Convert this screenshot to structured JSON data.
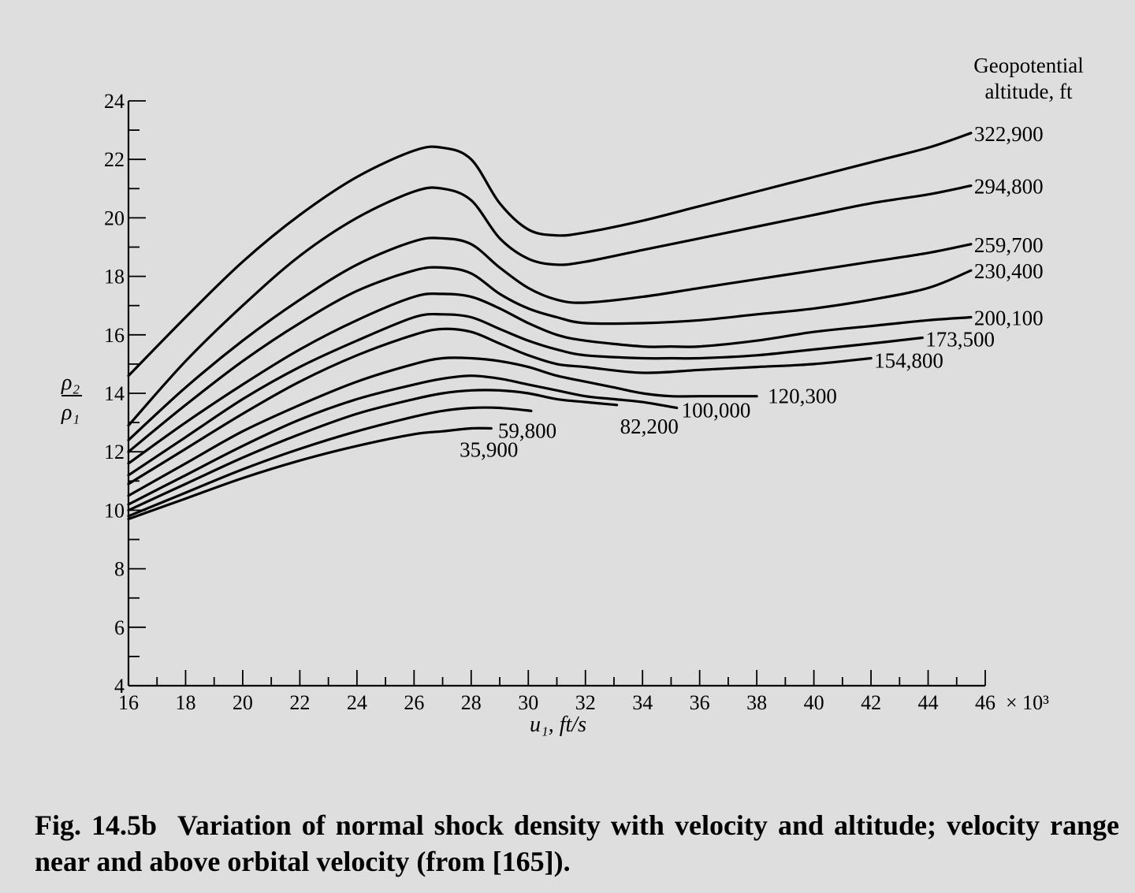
{
  "caption": {
    "figure_number": "Fig. 14.5b",
    "text": "Variation of normal shock density with velocity and altitude; velocity range near and above orbital velocity (from [165])."
  },
  "chart_data": {
    "type": "line",
    "xlabel": "u₁, ft/s",
    "x_multiplier": "× 10³",
    "ylabel_num": "ρ₂",
    "ylabel_den": "ρ₁",
    "xlim": [
      16,
      46
    ],
    "ylim": [
      4,
      24
    ],
    "x_ticks": [
      "16",
      "18",
      "20",
      "22",
      "24",
      "26",
      "28",
      "30",
      "32",
      "34",
      "36",
      "38",
      "40",
      "42",
      "44",
      "46"
    ],
    "y_ticks": [
      "4",
      "6",
      "8",
      "10",
      "12",
      "14",
      "16",
      "18",
      "20",
      "22",
      "24"
    ],
    "legend_title": [
      "Geopotential",
      "altitude, ft"
    ],
    "series": [
      {
        "name": "322,900",
        "x": [
          16,
          18,
          20,
          22,
          24,
          26,
          27,
          28,
          29,
          30,
          31,
          32,
          34,
          36,
          38,
          40,
          42,
          44,
          45.5
        ],
        "y": [
          14.6,
          16.6,
          18.5,
          20.1,
          21.4,
          22.3,
          22.4,
          22.0,
          20.5,
          19.6,
          19.4,
          19.5,
          19.9,
          20.4,
          20.9,
          21.4,
          21.9,
          22.4,
          22.9
        ]
      },
      {
        "name": "294,800",
        "x": [
          16,
          18,
          20,
          22,
          24,
          26,
          27,
          28,
          29,
          30,
          31,
          32,
          34,
          36,
          38,
          40,
          42,
          44,
          45.5
        ],
        "y": [
          12.9,
          15.1,
          17.0,
          18.7,
          20.0,
          20.9,
          21.0,
          20.6,
          19.3,
          18.6,
          18.4,
          18.5,
          18.9,
          19.3,
          19.7,
          20.1,
          20.5,
          20.8,
          21.1
        ]
      },
      {
        "name": "259,700",
        "x": [
          16,
          18,
          20,
          22,
          24,
          26,
          27,
          28,
          29,
          30,
          31,
          32,
          34,
          36,
          38,
          40,
          42,
          44,
          45.5
        ],
        "y": [
          12.4,
          14.2,
          15.8,
          17.2,
          18.4,
          19.2,
          19.3,
          19.1,
          18.3,
          17.6,
          17.2,
          17.1,
          17.3,
          17.6,
          17.9,
          18.2,
          18.5,
          18.8,
          19.1
        ]
      },
      {
        "name": "230,400",
        "x": [
          16,
          18,
          20,
          22,
          24,
          26,
          27,
          28,
          29,
          30,
          31,
          32,
          34,
          36,
          38,
          40,
          42,
          44,
          45.5
        ],
        "y": [
          12.0,
          13.6,
          15.1,
          16.4,
          17.5,
          18.2,
          18.3,
          18.1,
          17.4,
          16.9,
          16.6,
          16.4,
          16.4,
          16.5,
          16.7,
          16.9,
          17.2,
          17.6,
          18.2
        ]
      },
      {
        "name": "200,100",
        "x": [
          16,
          18,
          20,
          22,
          24,
          26,
          27,
          28,
          29,
          30,
          31,
          32,
          34,
          35,
          36,
          38,
          40,
          42,
          44,
          45.5
        ],
        "y": [
          11.6,
          13.0,
          14.3,
          15.5,
          16.5,
          17.3,
          17.4,
          17.3,
          16.9,
          16.4,
          16.0,
          15.8,
          15.6,
          15.6,
          15.6,
          15.8,
          16.1,
          16.3,
          16.5,
          16.6
        ]
      },
      {
        "name": "173,500",
        "x": [
          16,
          18,
          20,
          22,
          24,
          26,
          27,
          28,
          29,
          30,
          31,
          32,
          34,
          35,
          36,
          38,
          40,
          42,
          43.8
        ],
        "y": [
          11.2,
          12.5,
          13.8,
          14.9,
          15.8,
          16.6,
          16.7,
          16.6,
          16.2,
          15.8,
          15.5,
          15.3,
          15.2,
          15.2,
          15.2,
          15.3,
          15.5,
          15.7,
          15.9
        ]
      },
      {
        "name": "154,800",
        "x": [
          16,
          18,
          20,
          22,
          24,
          26,
          27,
          28,
          29,
          30,
          31,
          32,
          34,
          36,
          38,
          40,
          42
        ],
        "y": [
          10.9,
          12.1,
          13.3,
          14.4,
          15.3,
          16.0,
          16.2,
          16.1,
          15.7,
          15.3,
          15.0,
          14.9,
          14.7,
          14.8,
          14.9,
          15.0,
          15.2
        ]
      },
      {
        "name": "120,300",
        "x": [
          16,
          18,
          20,
          22,
          24,
          26,
          27,
          28,
          29,
          30,
          31,
          32,
          33,
          34,
          35,
          36,
          38
        ],
        "y": [
          10.5,
          11.6,
          12.7,
          13.6,
          14.4,
          15.0,
          15.2,
          15.2,
          15.1,
          14.9,
          14.6,
          14.4,
          14.2,
          14.0,
          13.9,
          13.9,
          13.9
        ]
      },
      {
        "name": "100,000",
        "x": [
          16,
          18,
          20,
          22,
          24,
          26,
          27,
          28,
          29,
          30,
          31,
          32,
          33,
          34,
          35.2
        ],
        "y": [
          10.2,
          11.2,
          12.2,
          13.1,
          13.8,
          14.3,
          14.5,
          14.6,
          14.5,
          14.3,
          14.1,
          13.9,
          13.8,
          13.7,
          13.5
        ]
      },
      {
        "name": "82,200",
        "x": [
          16,
          18,
          20,
          22,
          24,
          26,
          27,
          28,
          29,
          30,
          31,
          32,
          33.1
        ],
        "y": [
          10.0,
          10.9,
          11.8,
          12.6,
          13.3,
          13.8,
          14.0,
          14.1,
          14.1,
          14.0,
          13.8,
          13.7,
          13.6
        ]
      },
      {
        "name": "59,800",
        "x": [
          16,
          18,
          20,
          22,
          24,
          26,
          27,
          28,
          29,
          30.1
        ],
        "y": [
          9.8,
          10.6,
          11.4,
          12.1,
          12.7,
          13.2,
          13.4,
          13.5,
          13.5,
          13.4
        ]
      },
      {
        "name": "35,900",
        "x": [
          16,
          18,
          20,
          22,
          24,
          26,
          27,
          28,
          28.7
        ],
        "y": [
          9.7,
          10.4,
          11.1,
          11.7,
          12.2,
          12.6,
          12.7,
          12.8,
          12.8
        ]
      }
    ]
  }
}
